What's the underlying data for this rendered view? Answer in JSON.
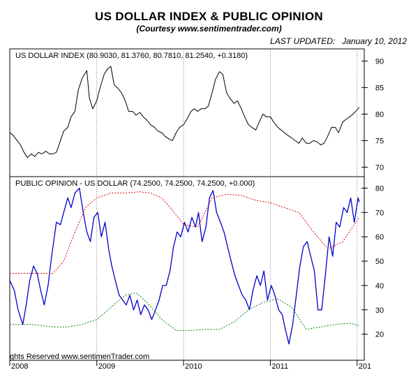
{
  "header": {
    "title": "US DOLLAR INDEX & PUBLIC OPINION",
    "subtitle": "(Courtesy www.sentimentrader.com)",
    "updated_label": "LAST UPDATED:",
    "updated_date": "January 10, 2012"
  },
  "copyright": "ghts Reserved  www.sentimenTrader.com",
  "colors": {
    "price_line": "#000000",
    "opinion_line": "#0000cc",
    "upper_band": "#dd0000",
    "lower_band": "#008800"
  },
  "chart_data": [
    {
      "type": "line",
      "title": "US DOLLAR INDEX (80.9030, 81.3760, 80.7810, 81.2540, +0.3180)",
      "y_ticks": [
        70,
        75,
        80,
        85,
        90
      ],
      "ylim": [
        69,
        91.5
      ],
      "x_tick_labels": [
        "2008",
        "2009",
        "2010",
        "2011",
        "201"
      ],
      "x_domain": [
        "2008-01-01",
        "2012-01-31"
      ],
      "series": [
        {
          "x": [
            "2008-01-01",
            "2008-01-15",
            "2008-02-01",
            "2008-02-15",
            "2008-03-01",
            "2008-03-15",
            "2008-04-01",
            "2008-04-15",
            "2008-05-01",
            "2008-05-15",
            "2008-06-01",
            "2008-06-15",
            "2008-07-01",
            "2008-07-15",
            "2008-08-01",
            "2008-08-15",
            "2008-09-01",
            "2008-09-15",
            "2008-10-01",
            "2008-10-15",
            "2008-11-01",
            "2008-11-20",
            "2008-12-01",
            "2008-12-15",
            "2009-01-01",
            "2009-01-15",
            "2009-02-01",
            "2009-02-15",
            "2009-03-01",
            "2009-03-15",
            "2009-04-01",
            "2009-04-15",
            "2009-05-01",
            "2009-05-15",
            "2009-06-01",
            "2009-06-15",
            "2009-07-01",
            "2009-07-15",
            "2009-08-01",
            "2009-08-15",
            "2009-09-01",
            "2009-09-15",
            "2009-10-01",
            "2009-10-15",
            "2009-11-01",
            "2009-11-15",
            "2009-12-01",
            "2009-12-15",
            "2010-01-01",
            "2010-01-15",
            "2010-02-01",
            "2010-02-15",
            "2010-03-01",
            "2010-03-15",
            "2010-04-01",
            "2010-04-15",
            "2010-05-01",
            "2010-05-15",
            "2010-06-01",
            "2010-06-15",
            "2010-07-01",
            "2010-07-15",
            "2010-08-01",
            "2010-08-15",
            "2010-09-01",
            "2010-09-15",
            "2010-10-01",
            "2010-10-15",
            "2010-11-01",
            "2010-11-15",
            "2010-12-01",
            "2010-12-15",
            "2011-01-01",
            "2011-01-15",
            "2011-02-01",
            "2011-02-15",
            "2011-03-01",
            "2011-03-15",
            "2011-04-01",
            "2011-04-15",
            "2011-05-01",
            "2011-05-15",
            "2011-06-01",
            "2011-06-15",
            "2011-07-01",
            "2011-07-15",
            "2011-08-01",
            "2011-08-15",
            "2011-09-01",
            "2011-09-15",
            "2011-10-01",
            "2011-10-15",
            "2011-11-01",
            "2011-11-15",
            "2011-12-01",
            "2011-12-15",
            "2012-01-01",
            "2012-01-10"
          ],
          "values": [
            76.5,
            76.0,
            75.0,
            74.2,
            72.8,
            71.8,
            72.5,
            72.0,
            72.8,
            72.5,
            73.0,
            72.5,
            72.5,
            72.8,
            75.0,
            76.8,
            77.5,
            79.5,
            80.5,
            84.5,
            86.8,
            88.2,
            83.0,
            81.0,
            82.5,
            85.0,
            87.5,
            88.5,
            89.0,
            85.5,
            84.8,
            84.0,
            82.5,
            80.5,
            80.5,
            79.8,
            80.3,
            79.5,
            78.8,
            78.0,
            77.5,
            76.8,
            76.5,
            75.8,
            75.3,
            75.0,
            76.5,
            77.5,
            78.0,
            79.0,
            80.5,
            81.0,
            80.5,
            81.0,
            81.0,
            81.5,
            84.0,
            86.5,
            88.0,
            87.5,
            84.0,
            83.0,
            82.0,
            82.5,
            81.0,
            79.5,
            78.0,
            77.5,
            77.0,
            78.5,
            80.0,
            79.5,
            79.5,
            78.5,
            77.5,
            77.0,
            76.5,
            76.0,
            75.5,
            75.0,
            74.5,
            75.5,
            74.5,
            74.5,
            75.0,
            74.8,
            74.2,
            74.5,
            76.0,
            77.5,
            77.5,
            76.5,
            78.5,
            79.0,
            79.5,
            80.0,
            80.8,
            81.3
          ]
        }
      ]
    },
    {
      "type": "line",
      "title": "PUBLIC OPINION - US DOLLAR (74.2500, 74.2500, 74.2500, +0.000)",
      "y_ticks": [
        20,
        30,
        40,
        50,
        60,
        70,
        80
      ],
      "ylim": [
        11,
        83
      ],
      "x_tick_labels": [
        "2008",
        "2009",
        "2010",
        "2011",
        "201"
      ],
      "x_domain": [
        "2008-01-01",
        "2012-01-31"
      ],
      "series": [
        {
          "style": "solid",
          "x": [
            "2008-01-01",
            "2008-01-20",
            "2008-02-05",
            "2008-02-25",
            "2008-03-10",
            "2008-03-25",
            "2008-04-10",
            "2008-04-25",
            "2008-05-10",
            "2008-05-25",
            "2008-06-10",
            "2008-06-25",
            "2008-07-15",
            "2008-08-01",
            "2008-08-15",
            "2008-09-01",
            "2008-09-15",
            "2008-10-01",
            "2008-10-20",
            "2008-11-05",
            "2008-11-20",
            "2008-12-05",
            "2008-12-20",
            "2009-01-05",
            "2009-01-20",
            "2009-02-05",
            "2009-02-20",
            "2009-03-05",
            "2009-03-20",
            "2009-04-05",
            "2009-04-20",
            "2009-05-05",
            "2009-05-20",
            "2009-06-05",
            "2009-06-20",
            "2009-07-05",
            "2009-07-20",
            "2009-08-05",
            "2009-08-20",
            "2009-09-05",
            "2009-09-20",
            "2009-10-05",
            "2009-10-20",
            "2009-11-05",
            "2009-11-20",
            "2009-12-05",
            "2009-12-20",
            "2010-01-05",
            "2010-01-20",
            "2010-02-05",
            "2010-02-20",
            "2010-03-05",
            "2010-03-20",
            "2010-04-05",
            "2010-04-20",
            "2010-05-05",
            "2010-05-20",
            "2010-06-05",
            "2010-06-20",
            "2010-07-05",
            "2010-07-20",
            "2010-08-05",
            "2010-08-20",
            "2010-09-05",
            "2010-09-20",
            "2010-10-05",
            "2010-10-20",
            "2010-11-05",
            "2010-11-20",
            "2010-12-05",
            "2010-12-20",
            "2011-01-05",
            "2011-01-20",
            "2011-02-05",
            "2011-02-20",
            "2011-03-05",
            "2011-03-20",
            "2011-04-05",
            "2011-04-20",
            "2011-05-05",
            "2011-05-20",
            "2011-06-05",
            "2011-06-20",
            "2011-07-05",
            "2011-07-20",
            "2011-08-05",
            "2011-08-20",
            "2011-09-05",
            "2011-09-20",
            "2011-10-05",
            "2011-10-20",
            "2011-11-05",
            "2011-11-20",
            "2011-12-05",
            "2011-12-20",
            "2012-01-05",
            "2012-01-10"
          ],
          "values": [
            42,
            38,
            30,
            24,
            32,
            42,
            48,
            45,
            38,
            32,
            40,
            52,
            66,
            65,
            70,
            76,
            72,
            78,
            80,
            70,
            62,
            58,
            68,
            70,
            60,
            66,
            55,
            48,
            42,
            36,
            34,
            32,
            36,
            30,
            34,
            28,
            32,
            30,
            26,
            30,
            34,
            40,
            40,
            46,
            56,
            62,
            60,
            66,
            62,
            68,
            64,
            70,
            58,
            64,
            76,
            79,
            70,
            66,
            62,
            56,
            50,
            44,
            40,
            36,
            34,
            30,
            38,
            44,
            40,
            46,
            34,
            40,
            36,
            30,
            28,
            22,
            16,
            24,
            36,
            48,
            56,
            58,
            52,
            46,
            30,
            30,
            44,
            60,
            52,
            66,
            64,
            72,
            70,
            76,
            66,
            76,
            74.25
          ]
        },
        {
          "name": "upper band",
          "style": "dashed",
          "x": [
            "2008-01-01",
            "2008-04-01",
            "2008-07-01",
            "2008-08-15",
            "2008-10-01",
            "2008-11-15",
            "2009-01-01",
            "2009-03-01",
            "2009-05-01",
            "2009-07-01",
            "2009-08-15",
            "2009-10-01",
            "2009-11-15",
            "2010-01-01",
            "2010-03-01",
            "2010-05-01",
            "2010-07-01",
            "2010-09-01",
            "2010-11-01",
            "2011-01-01",
            "2011-03-01",
            "2011-05-01",
            "2011-07-01",
            "2011-09-01",
            "2011-11-01",
            "2012-01-10"
          ],
          "values": [
            45,
            45,
            45,
            50,
            62,
            72,
            76,
            78,
            78,
            78.5,
            78,
            76,
            71,
            65,
            64,
            76,
            77.5,
            77,
            75,
            74,
            72,
            70,
            62,
            55,
            58,
            68
          ]
        },
        {
          "name": "lower band",
          "style": "dashed",
          "x": [
            "2008-01-01",
            "2008-04-01",
            "2008-07-01",
            "2008-09-01",
            "2008-11-01",
            "2009-01-01",
            "2009-03-01",
            "2009-05-01",
            "2009-06-15",
            "2009-08-01",
            "2009-10-01",
            "2009-12-01",
            "2010-02-01",
            "2010-04-01",
            "2010-06-01",
            "2010-08-01",
            "2010-10-01",
            "2010-12-01",
            "2011-02-01",
            "2011-04-01",
            "2011-06-01",
            "2011-08-01",
            "2011-10-01",
            "2011-12-01",
            "2012-01-10"
          ],
          "values": [
            24,
            24,
            23,
            23,
            24,
            26,
            31,
            36,
            37,
            33,
            26,
            21.5,
            21.5,
            22,
            22,
            25,
            30,
            33,
            34.5,
            31,
            22,
            23,
            24,
            24.5,
            23.5
          ]
        }
      ]
    }
  ]
}
